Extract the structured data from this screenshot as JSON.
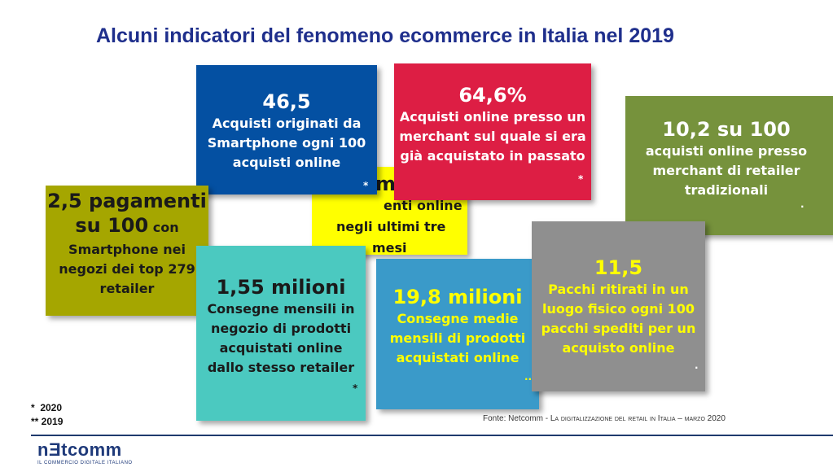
{
  "title": "Alcuni indicatori del fenomeno ecommerce in Italia nel 2019",
  "boxes": {
    "yellow": {
      "big": "m",
      "line1": "enti online",
      "line2": "negli ultimi tre",
      "line3": "mesi"
    },
    "blue": {
      "big": "46,5",
      "line1": "Acquisti originati da",
      "line2": "Smartphone ogni 100",
      "line3": "acquisti online",
      "mark": "*"
    },
    "red": {
      "big": "64,6%",
      "line1": "Acquisti online presso un",
      "line2": "merchant sul quale si era",
      "line3": "già acquistato in passato",
      "mark": "*"
    },
    "green": {
      "big": "10,2 su 100",
      "line1": "acquisti online presso",
      "line2": "merchant di retailer",
      "line3": "tradizionali",
      "mark": "."
    },
    "olive": {
      "big1": "2,5 pagamenti",
      "big2": "su 100",
      "small2": " con",
      "line1": "Smartphone nei",
      "line2": "negozi dei top 279",
      "line3": "retailer",
      "mark": "."
    },
    "teal": {
      "big": "1,55 milioni",
      "line1": "Consegne mensili in",
      "line2": "negozio di prodotti",
      "line3": "acquistati online",
      "line4": "dallo stesso retailer",
      "mark": "*"
    },
    "lblue": {
      "big": "19,8 milioni",
      "line1": "Consegne medie",
      "line2": "mensili di prodotti",
      "line3": "acquistati online",
      "mark": ".."
    },
    "gray": {
      "big": "11,5",
      "line1": "Pacchi ritirati in un",
      "line2": "luogo fisico ogni 100",
      "line3": "pacchi spediti per un",
      "line4": "acquisto online",
      "mark": "."
    }
  },
  "footnotes": {
    "one": "*  2020",
    "two": "** 2019"
  },
  "source": {
    "prefix": "Fonte: Netcomm - ",
    "rest": "La digitalizzazione del retail in Italia – marzo 2020"
  },
  "logo": {
    "name": "nƎtcomm",
    "tagline": "IL COMMERCIO DIGITALE ITALIANO"
  }
}
